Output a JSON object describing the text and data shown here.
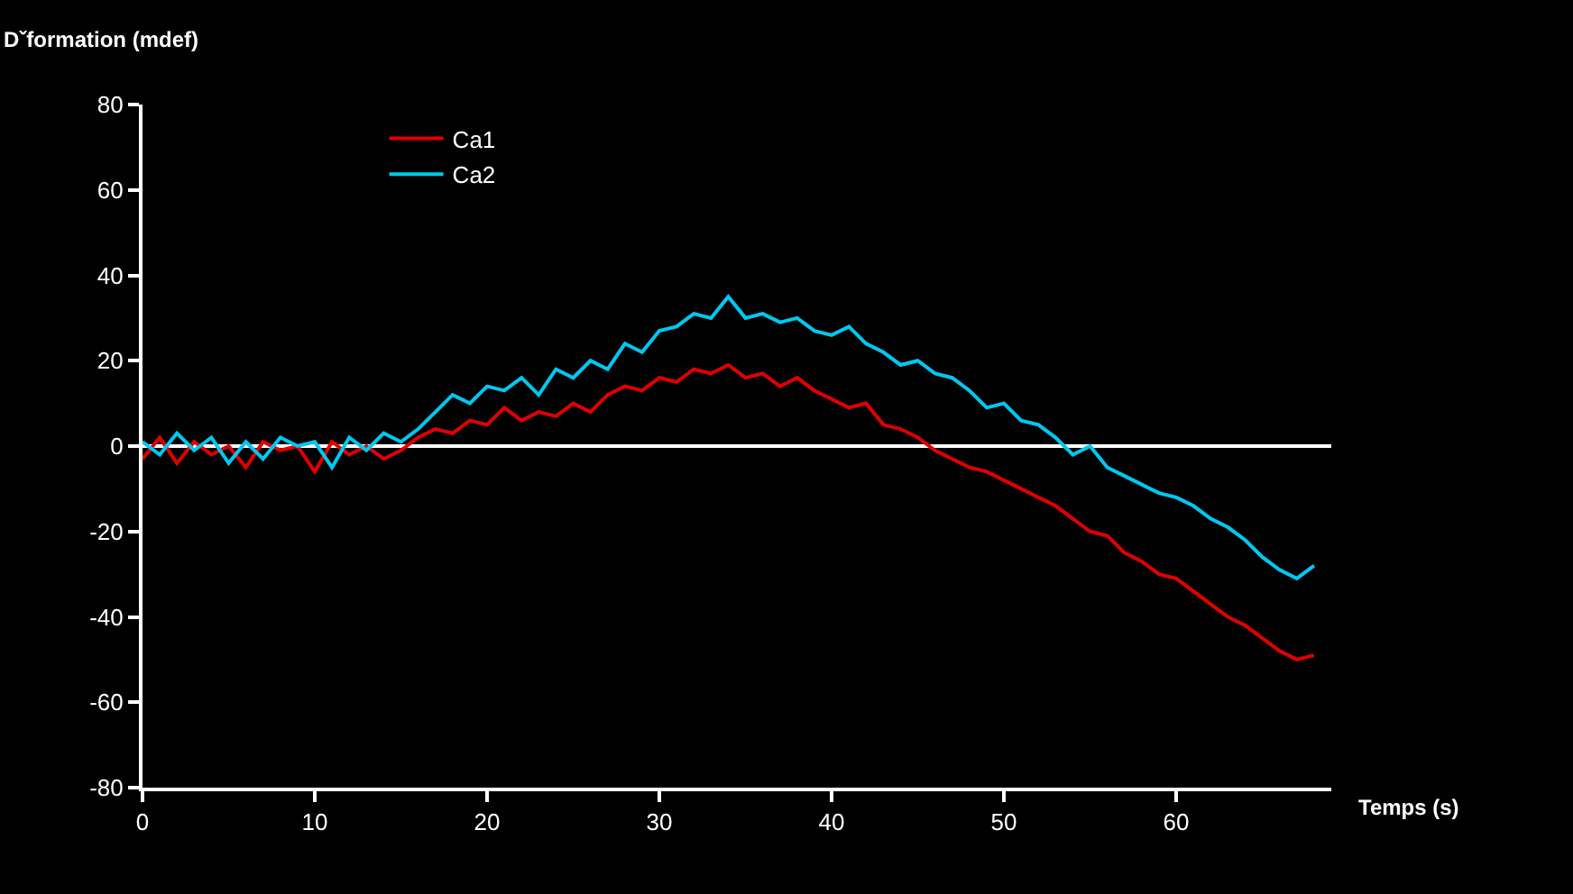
{
  "chart_data": {
    "type": "line",
    "ylabel": "Dˇformation (mdef)",
    "xlabel": "Temps (s)",
    "x": [
      0,
      1,
      2,
      3,
      4,
      5,
      6,
      7,
      8,
      9,
      10,
      11,
      12,
      13,
      14,
      15,
      16,
      17,
      18,
      19,
      20,
      21,
      22,
      23,
      24,
      25,
      26,
      27,
      28,
      29,
      30,
      31,
      32,
      33,
      34,
      35,
      36,
      37,
      38,
      39,
      40,
      41,
      42,
      43,
      44,
      45,
      46,
      47,
      48,
      49,
      50,
      51,
      52,
      53,
      54,
      55,
      56,
      57,
      58,
      59,
      60,
      61,
      62,
      63,
      64,
      65,
      66,
      67,
      68
    ],
    "series": [
      {
        "name": "Ca1",
        "color": "#e00000",
        "values": [
          -3,
          2,
          -4,
          1,
          -2,
          0,
          -5,
          1,
          -1,
          0,
          -6,
          1,
          -2,
          0,
          -3,
          -1,
          2,
          4,
          3,
          6,
          5,
          9,
          6,
          8,
          7,
          10,
          8,
          12,
          14,
          13,
          16,
          15,
          18,
          17,
          19,
          16,
          17,
          14,
          16,
          13,
          11,
          9,
          10,
          5,
          4,
          2,
          -1,
          -3,
          -5,
          -6,
          -8,
          -10,
          -12,
          -14,
          -17,
          -20,
          -21,
          -25,
          -27,
          -30,
          -31,
          -34,
          -37,
          -40,
          -42,
          -45,
          -48,
          -50,
          -49
        ]
      },
      {
        "name": "Ca2",
        "color": "#00c8f0",
        "values": [
          1,
          -2,
          3,
          -1,
          2,
          -4,
          1,
          -3,
          2,
          0,
          1,
          -5,
          2,
          -1,
          3,
          1,
          4,
          8,
          12,
          10,
          14,
          13,
          16,
          12,
          18,
          16,
          20,
          18,
          24,
          22,
          27,
          28,
          31,
          30,
          35,
          30,
          31,
          29,
          30,
          27,
          26,
          28,
          24,
          22,
          19,
          20,
          17,
          16,
          13,
          9,
          10,
          6,
          5,
          2,
          -2,
          0,
          -5,
          -7,
          -9,
          -11,
          -12,
          -14,
          -17,
          -19,
          -22,
          -26,
          -29,
          -31,
          -28
        ]
      }
    ],
    "xlim": [
      0,
      69
    ],
    "xticks": [
      0,
      10,
      20,
      30,
      40,
      50,
      60
    ],
    "ylim": [
      -80,
      80
    ],
    "yticks": [
      -80,
      -60,
      -40,
      -20,
      0,
      20,
      40,
      60,
      80
    ],
    "ref_lines": [
      {
        "axis": "y",
        "value": 0,
        "color": "#ffffff"
      }
    ],
    "legend": "top left",
    "grid": false,
    "marker": "none",
    "line_style": "solid"
  }
}
